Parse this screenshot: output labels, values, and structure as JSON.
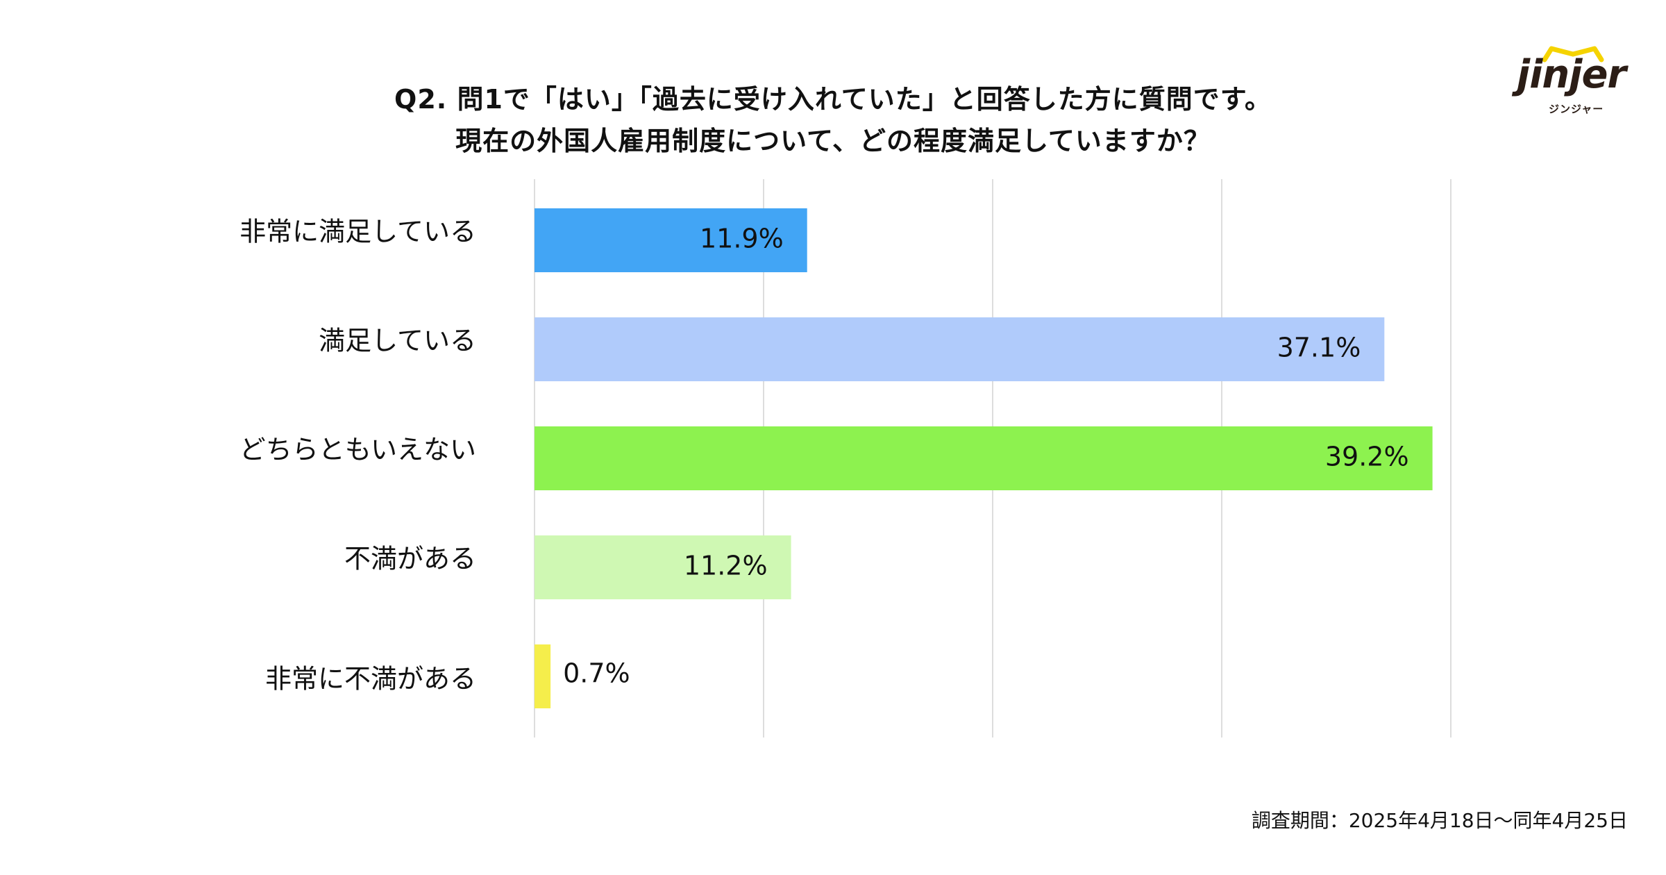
{
  "title": {
    "line1": "Q2. 問1で「はい」「過去に受け入れていた」と回答した方に質問です。",
    "line2": "現在の外国人雇用制度について、どの程度満足していますか？"
  },
  "logo": {
    "wordmark": "jinjer",
    "subtext": "ジンジャー",
    "colors": {
      "text": "#2b1d16",
      "crown": "#f5d300"
    }
  },
  "footnote": "調査期間：2025年4月18日〜同年4月25日",
  "chart_data": {
    "type": "bar",
    "orientation": "horizontal",
    "categories": [
      "非常に満足している",
      "満足している",
      "どちらともいえない",
      "不満がある",
      "非常に不満がある"
    ],
    "values": [
      11.9,
      37.1,
      39.2,
      11.2,
      0.7
    ],
    "value_labels": [
      "11.9%",
      "37.1%",
      "39.2%",
      "11.2%",
      "0.7%"
    ],
    "colors": [
      "#42a5f5",
      "#b0cbfb",
      "#8df24f",
      "#cff8b3",
      "#f5ee4b"
    ],
    "xlim": [
      0,
      40
    ],
    "grid": true,
    "legend": "none"
  }
}
